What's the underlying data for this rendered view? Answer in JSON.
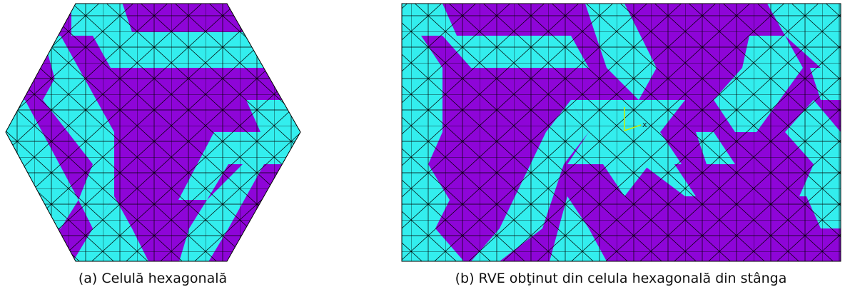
{
  "figures": [
    {
      "caption": "(a) Celulă hexagonală"
    },
    {
      "caption": "(b) RVE obţinut din celula hexagonală din stânga",
      "triad_label": "x"
    }
  ]
}
